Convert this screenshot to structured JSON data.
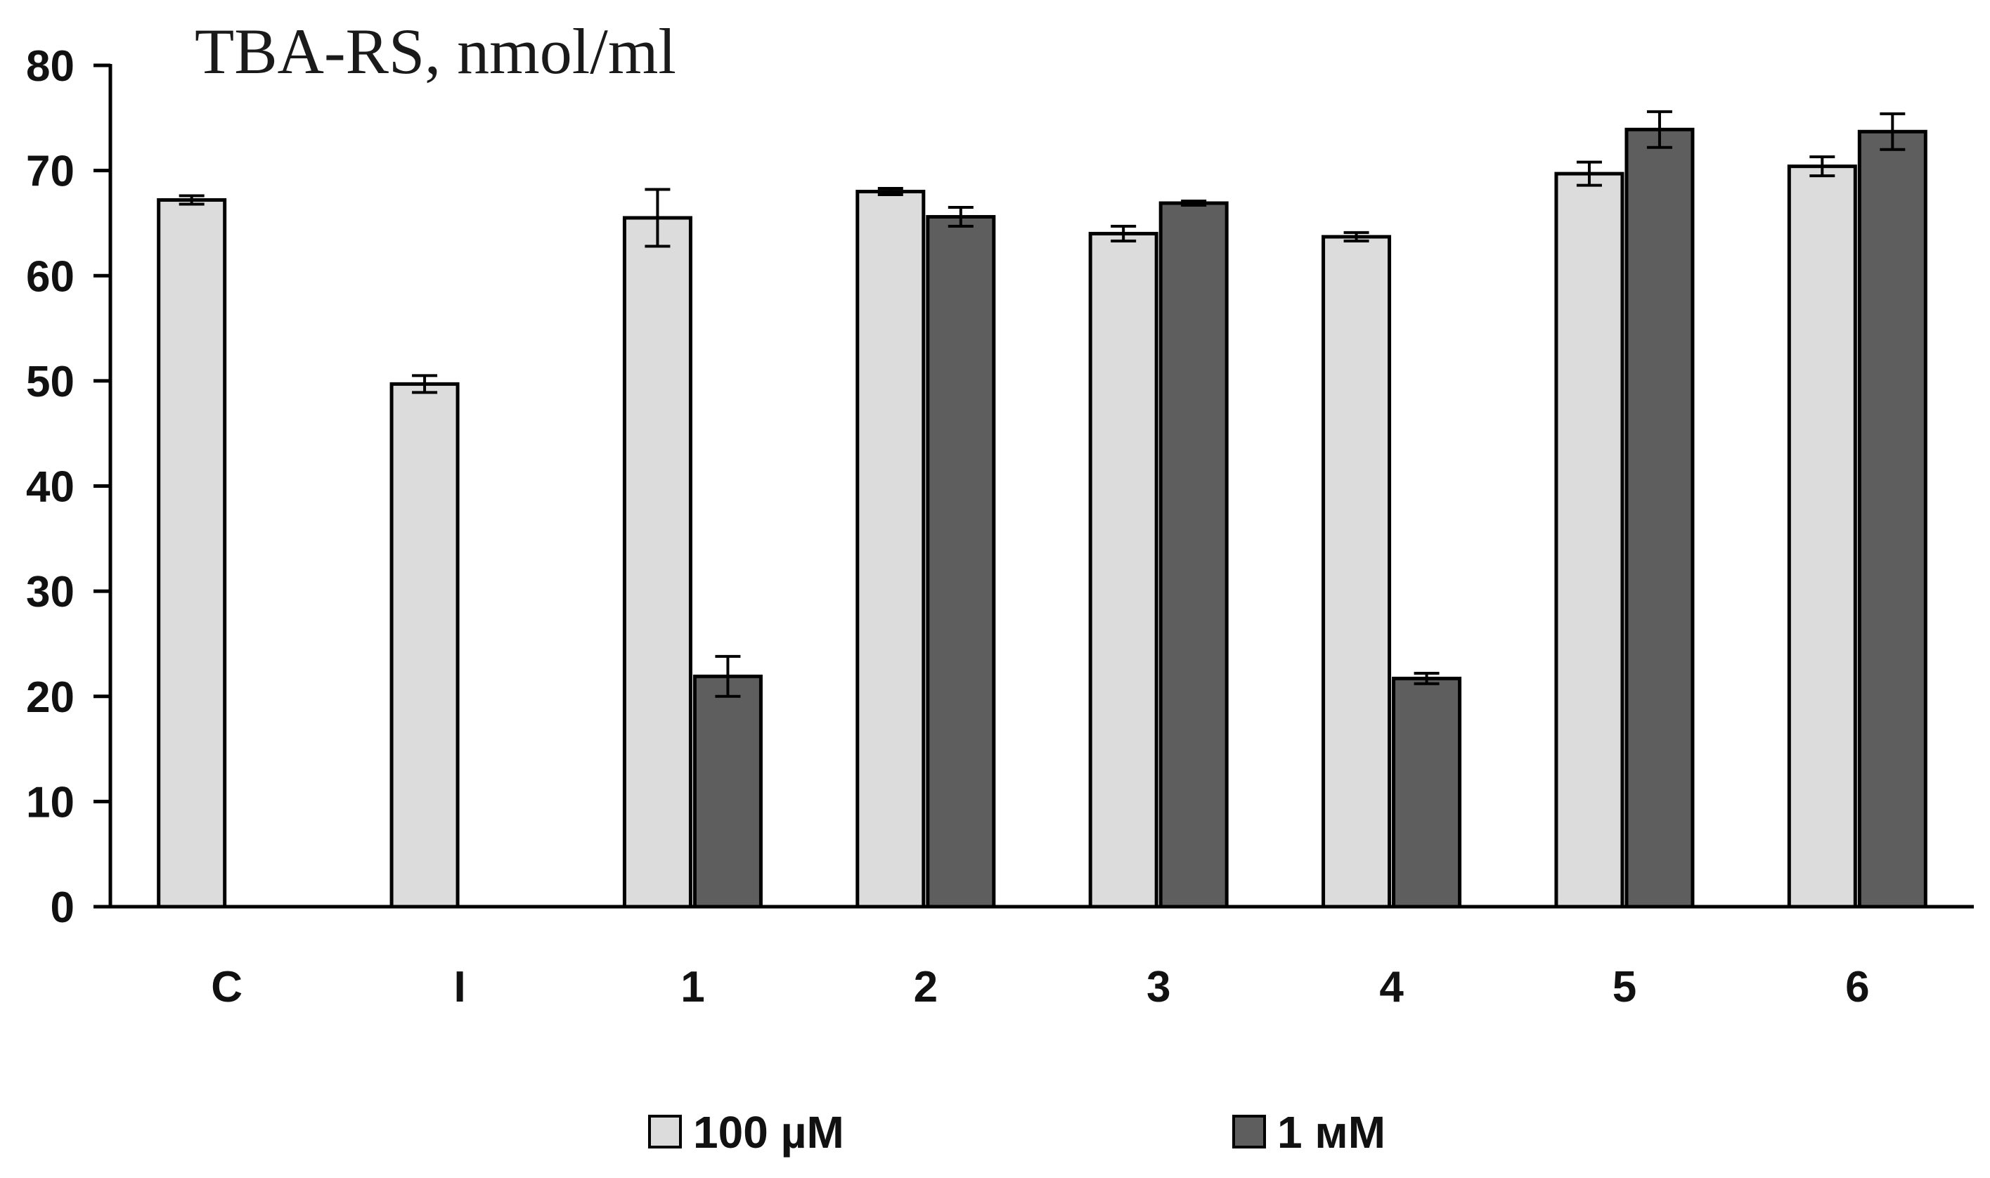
{
  "chart_data": {
    "type": "bar",
    "title": "TBA-RS, nmol/ml",
    "xlabel": "",
    "ylabel": "",
    "categories": [
      "C",
      "I",
      "1",
      "2",
      "3",
      "4",
      "5",
      "6"
    ],
    "ylim": [
      0,
      80
    ],
    "yticks": [
      0,
      10,
      20,
      30,
      40,
      50,
      60,
      70,
      80
    ],
    "grid": false,
    "legend_position": "bottom",
    "series": [
      {
        "name": "100 µM",
        "color": "#dcdcdc",
        "values": [
          67.2,
          49.7,
          65.5,
          68.0,
          64.0,
          63.7,
          69.7,
          70.4
        ],
        "errors": [
          0.4,
          0.8,
          2.7,
          0.3,
          0.7,
          0.4,
          1.1,
          0.9
        ]
      },
      {
        "name": "1 мМ",
        "color": "#5e5e5e",
        "values": [
          null,
          null,
          21.9,
          65.6,
          66.9,
          21.7,
          73.9,
          73.7
        ],
        "errors": [
          null,
          null,
          1.9,
          0.9,
          0.2,
          0.5,
          1.7,
          1.7
        ]
      }
    ]
  }
}
